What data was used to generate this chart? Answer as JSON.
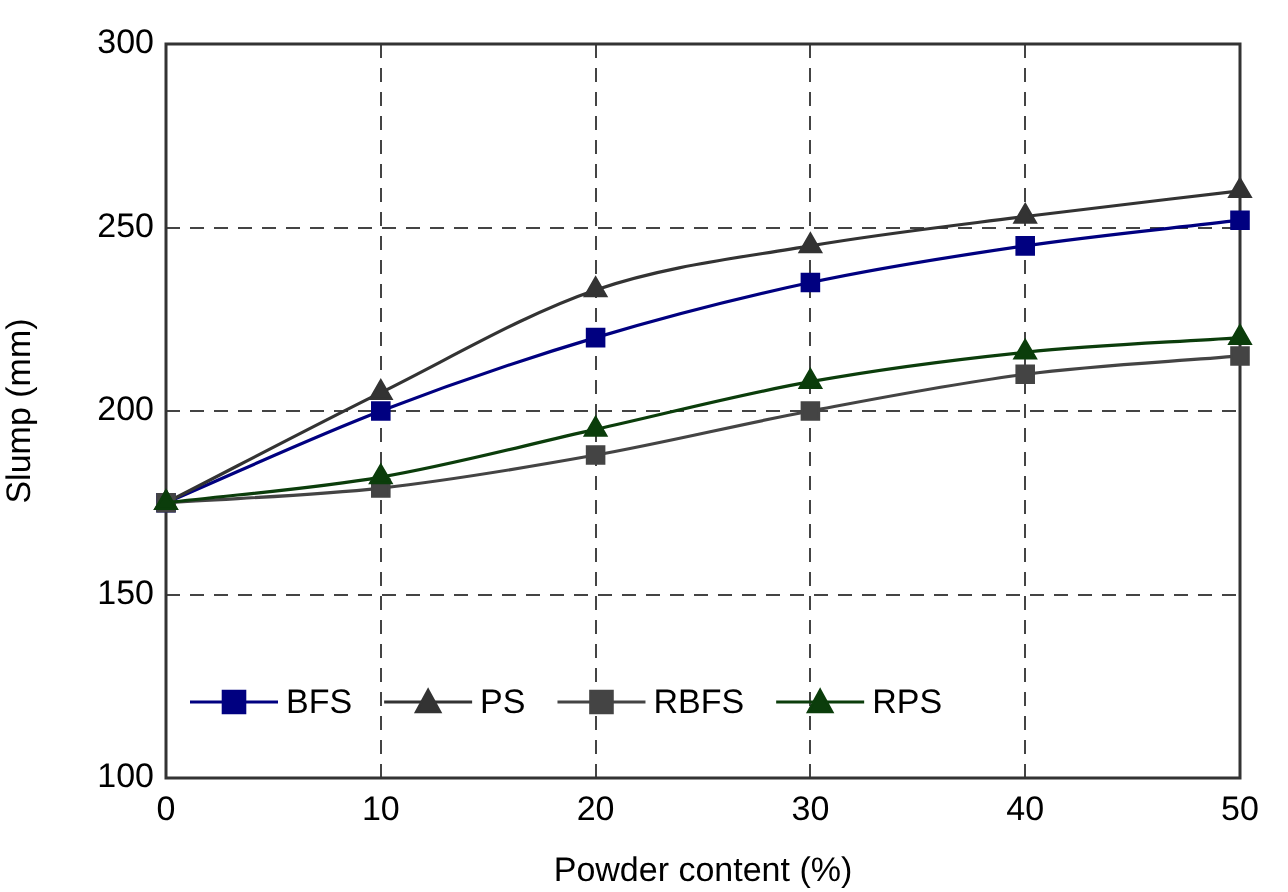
{
  "chart_data": {
    "type": "line",
    "xlabel": "Powder content (%)",
    "ylabel": "Slump (mm)",
    "x": [
      0,
      10,
      20,
      30,
      40,
      50
    ],
    "xlim": [
      0,
      50
    ],
    "xticks": [
      0,
      10,
      20,
      30,
      40,
      50
    ],
    "ylim": [
      100,
      300
    ],
    "yticks": [
      100,
      150,
      200,
      250,
      300
    ],
    "grid": true,
    "legend": "bottom left",
    "line_style": "solid",
    "series": [
      {
        "name": "BFS",
        "color": "#000080",
        "marker": "square",
        "values": [
          175,
          200,
          220,
          235,
          245,
          252
        ]
      },
      {
        "name": "PS",
        "color": "#333333",
        "marker": "triangle",
        "values": [
          175,
          205,
          233,
          245,
          253,
          260
        ]
      },
      {
        "name": "RBFS",
        "color": "#444444",
        "marker": "square",
        "values": [
          175,
          179,
          188,
          200,
          210,
          215
        ]
      },
      {
        "name": "RPS",
        "color": "#0b3d0b",
        "marker": "triangle",
        "values": [
          175,
          182,
          195,
          208,
          216,
          220
        ]
      }
    ]
  }
}
